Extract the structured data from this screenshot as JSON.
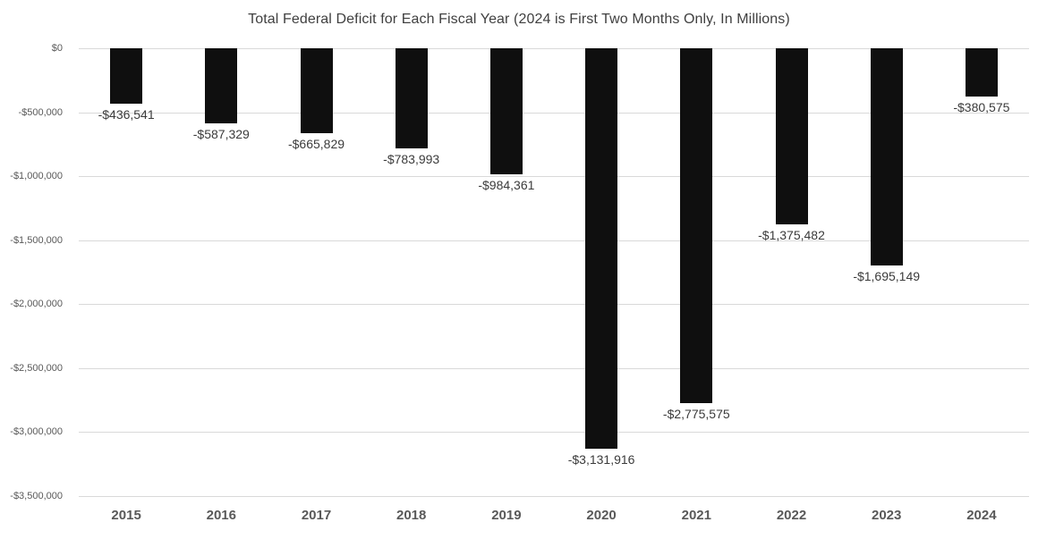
{
  "chart_data": {
    "type": "bar",
    "title": "Total Federal Deficit for Each Fiscal Year (2024 is First Two Months Only, In Millions)",
    "categories": [
      "2015",
      "2016",
      "2017",
      "2018",
      "2019",
      "2020",
      "2021",
      "2022",
      "2023",
      "2024"
    ],
    "values": [
      -436541,
      -587329,
      -665829,
      -783993,
      -984361,
      -3131916,
      -2775575,
      -1375482,
      -1695149,
      -380575
    ],
    "data_labels": [
      "-$436,541",
      "-$587,329",
      "-$665,829",
      "-$783,993",
      "-$984,361",
      "-$3,131,916",
      "-$2,775,575",
      "-$1,375,482",
      "-$1,695,149",
      "-$380,575"
    ],
    "y_ticks": [
      "$0",
      "-$500,000",
      "-$1,000,000",
      "-$1,500,000",
      "-$2,000,000",
      "-$2,500,000",
      "-$3,000,000",
      "-$3,500,000"
    ],
    "ylim": [
      -3500000,
      0
    ],
    "xlabel": "",
    "ylabel": "",
    "grid": true,
    "legend_position": "none",
    "colors": {
      "bar": "#0f0f0f",
      "gridline": "#d9d9d9",
      "axis_tick_text": "#595959",
      "title_text": "#404040",
      "data_label_text": "#3b3b3b",
      "background": "#ffffff"
    }
  }
}
